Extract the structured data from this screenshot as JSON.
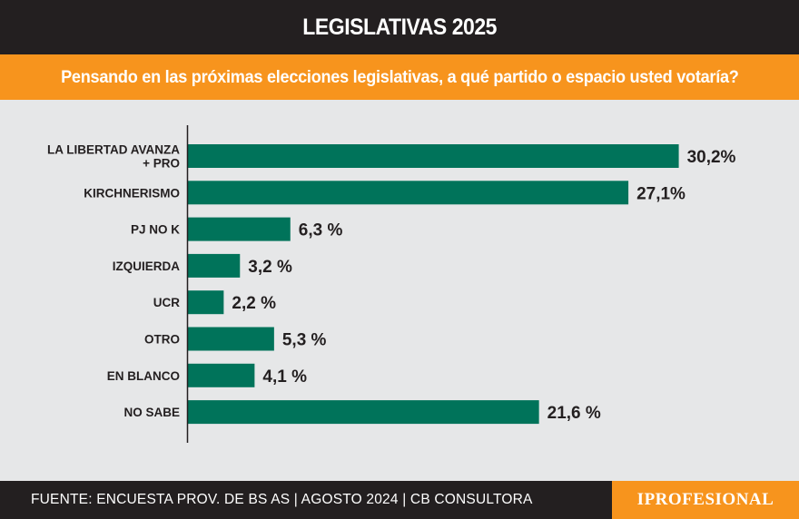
{
  "header": {
    "title": "LEGISLATIVAS 2025"
  },
  "question": "Pensando en las próximas elecciones legislativas, a qué partido o espacio usted votaría?",
  "footer": {
    "source": "FUENTE: ENCUESTA PROV. DE BS AS | AGOSTO 2024 | CB CONSULTORA",
    "logo": "IPROFESIONAL"
  },
  "colors": {
    "header_bg": "#231f20",
    "accent": "#f7941d",
    "bar": "#00735a",
    "background": "#e6e7e8"
  },
  "chart_data": {
    "type": "bar",
    "orientation": "horizontal",
    "title": "",
    "xlabel": "",
    "ylabel": "",
    "grid": false,
    "categories": [
      [
        "LA LIBERTAD AVANZA",
        "+ PRO"
      ],
      [
        "KIRCHNERISMO"
      ],
      [
        "PJ NO K"
      ],
      [
        "IZQUIERDA"
      ],
      [
        "UCR"
      ],
      [
        "OTRO"
      ],
      [
        "EN BLANCO"
      ],
      [
        "NO SABE"
      ]
    ],
    "values": [
      30.2,
      27.1,
      6.3,
      3.2,
      2.2,
      5.3,
      4.1,
      21.6
    ],
    "value_labels": [
      "30,2%",
      "27,1%",
      "6,3 %",
      "3,2 %",
      "2,2 %",
      "5,3 %",
      "4,1 %",
      "21,6 %"
    ]
  }
}
